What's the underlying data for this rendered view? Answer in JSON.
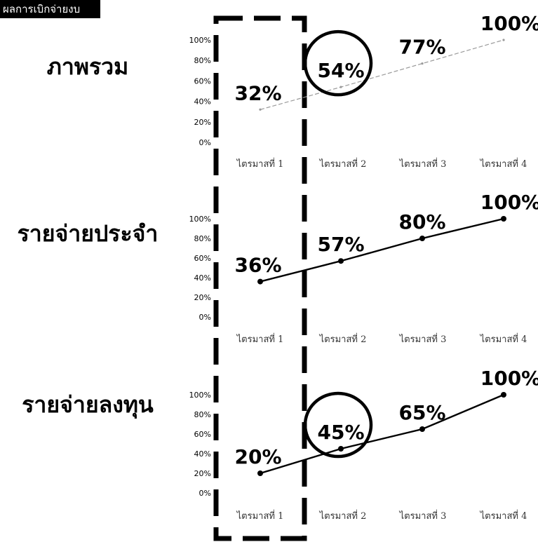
{
  "corner_label": "ผลการเบิกจ่ายงบประมาณ",
  "colors": {
    "ink": "#000000",
    "faded_line": "#9a9a9a"
  },
  "chart_data": [
    {
      "type": "line",
      "title": "ภาพรวม",
      "categories": [
        "ไตรมาสที่ 1",
        "ไตรมาสที่ 2",
        "ไตรมาสที่ 3",
        "ไตรมาสที่ 4"
      ],
      "values": [
        32,
        54,
        77,
        100
      ],
      "data_labels": [
        "32%",
        "54%",
        "77%",
        "100%"
      ],
      "yticks": [
        "100%",
        "80%",
        "60%",
        "40%",
        "20%",
        "0%"
      ],
      "ylim": [
        0,
        100
      ],
      "line_style": "faded",
      "circled_category": 1
    },
    {
      "type": "line",
      "title": "รายจ่ายประจำ",
      "categories": [
        "ไตรมาสที่ 1",
        "ไตรมาสที่ 2",
        "ไตรมาสที่ 3",
        "ไตรมาสที่ 4"
      ],
      "values": [
        36,
        57,
        80,
        100
      ],
      "data_labels": [
        "36%",
        "57%",
        "80%",
        "100%"
      ],
      "yticks": [
        "100%",
        "80%",
        "60%",
        "40%",
        "20%",
        "0%"
      ],
      "ylim": [
        0,
        100
      ],
      "line_style": "solid",
      "circled_category": null
    },
    {
      "type": "line",
      "title": "รายจ่ายลงทุน",
      "categories": [
        "ไตรมาสที่ 1",
        "ไตรมาสที่ 2",
        "ไตรมาสที่ 3",
        "ไตรมาสที่ 4"
      ],
      "values": [
        20,
        45,
        65,
        100
      ],
      "data_labels": [
        "20%",
        "45%",
        "65%",
        "100%"
      ],
      "yticks": [
        "100%",
        "80%",
        "60%",
        "40%",
        "20%",
        "0%"
      ],
      "ylim": [
        0,
        100
      ],
      "line_style": "solid",
      "circled_category": 1
    }
  ]
}
